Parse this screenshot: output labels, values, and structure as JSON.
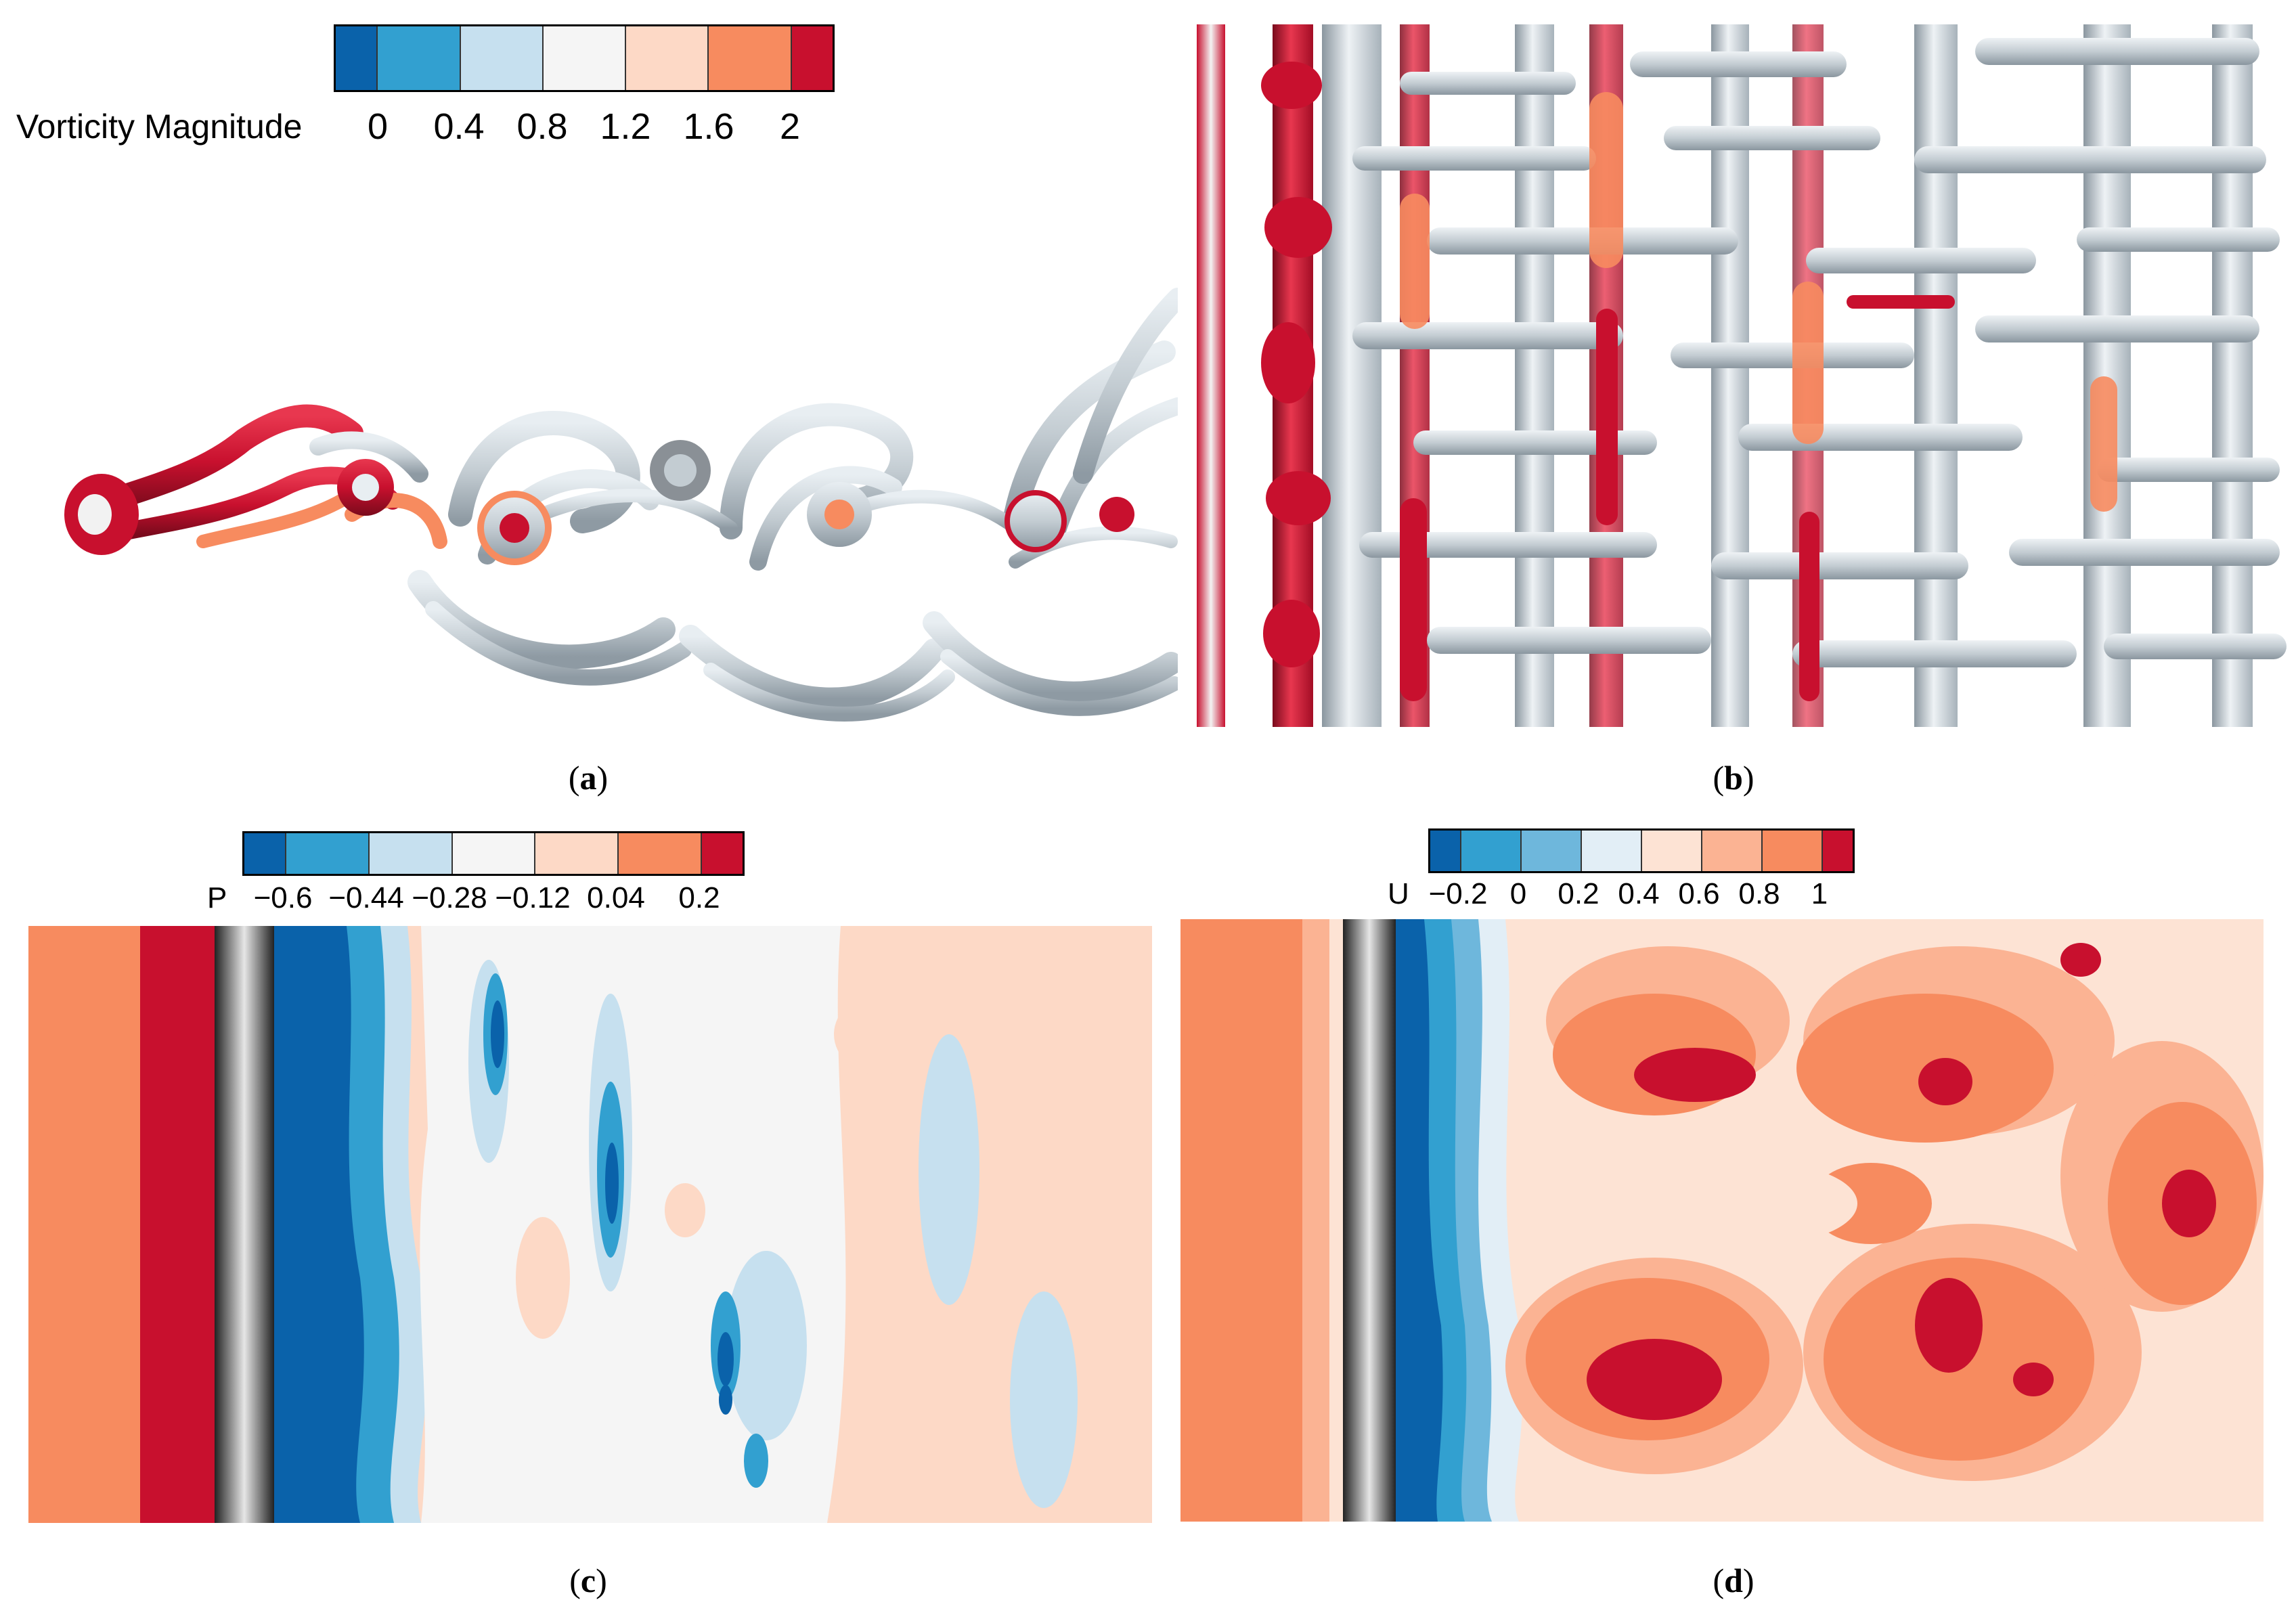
{
  "colors": {
    "c0": "#0a62aa",
    "c1": "#32a0d0",
    "c2": "#c6e0ef",
    "c3": "#f5f5f5",
    "c4": "#fdd9c6",
    "c5": "#f78b5f",
    "c6": "#c8102e",
    "vortex_grey": "#c3ccd2"
  },
  "panels": {
    "a": {
      "caption_letter": "a",
      "colorbar": {
        "label": "Vorticity Magnitude",
        "ticks": [
          "0",
          "0.4",
          "0.8",
          "1.2",
          "1.6",
          "2"
        ]
      }
    },
    "b": {
      "caption_letter": "b"
    },
    "c": {
      "caption_letter": "c",
      "colorbar": {
        "label": "P",
        "ticks": [
          "−0.6",
          "−0.44",
          "−0.28",
          "−0.12",
          "0.04",
          "0.2"
        ]
      }
    },
    "d": {
      "caption_letter": "d",
      "colorbar": {
        "label": "U",
        "ticks": [
          "−0.2",
          "0",
          "0.2",
          "0.4",
          "0.6",
          "0.8",
          "1"
        ]
      }
    }
  }
}
